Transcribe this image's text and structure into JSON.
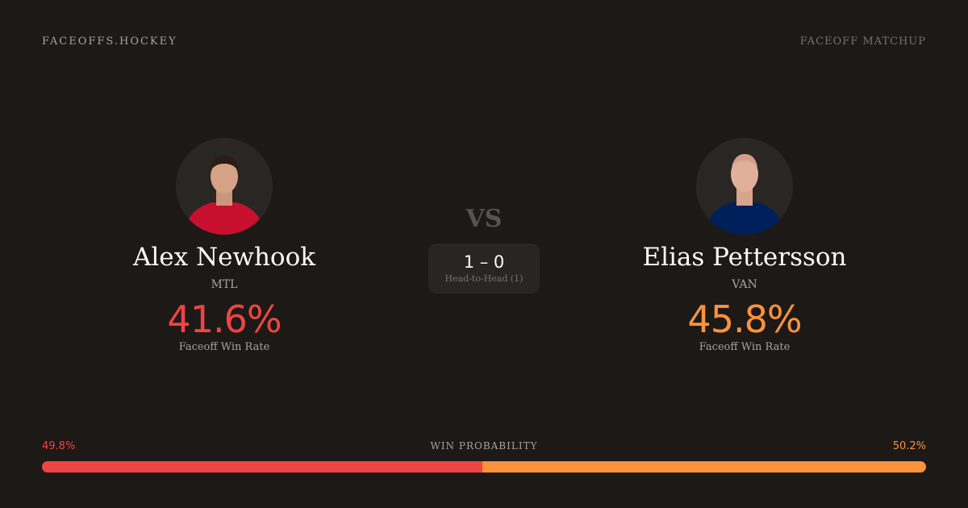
{
  "header": {
    "brand": "FACEOFFS.HOCKEY",
    "tag": "FACEOFF MATCHUP"
  },
  "colors": {
    "background": "#1c1917",
    "player1": "#ef4444",
    "player2": "#fb923c"
  },
  "players": [
    {
      "name": "Alex Newhook",
      "team": "MTL",
      "win_rate": "41.6%",
      "win_rate_label": "Faceoff Win Rate",
      "jersey": "#c8102e"
    },
    {
      "name": "Elias Pettersson",
      "team": "VAN",
      "win_rate": "45.8%",
      "win_rate_label": "Faceoff Win Rate",
      "jersey": "#00205b"
    }
  ],
  "vs": "VS",
  "head_to_head": {
    "score": "1 – 0",
    "label": "Head-to-Head (1)"
  },
  "win_probability": {
    "label": "WIN PROBABILITY",
    "player1": "49.8%",
    "player2": "50.2%",
    "player1_value": 49.8,
    "player2_value": 50.2
  }
}
